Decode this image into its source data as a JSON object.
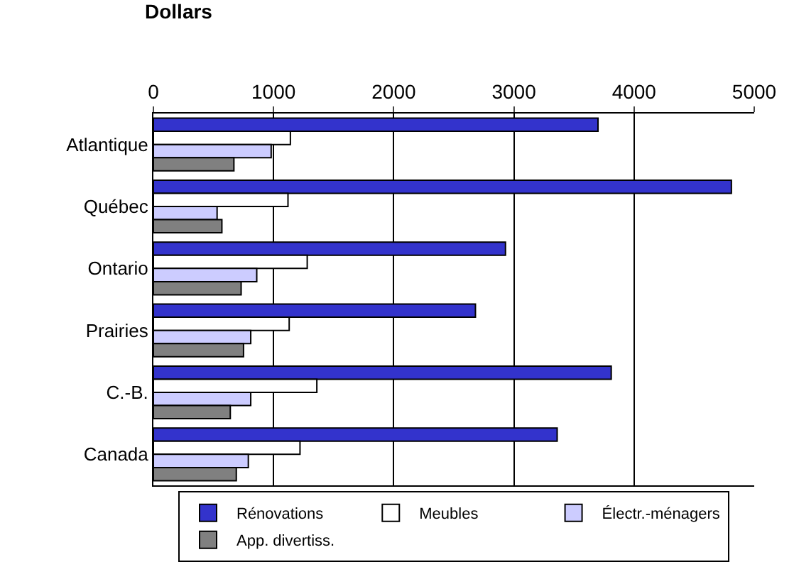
{
  "chart_data": {
    "type": "bar",
    "orientation": "horizontal",
    "xlabel": "Dollars",
    "categories": [
      "Atlantique",
      "Québec",
      "Ontario",
      "Prairies",
      "C.-B.",
      "Canada"
    ],
    "series": [
      {
        "name": "Rénovations",
        "color": "#3333cc",
        "values": [
          3700,
          4810,
          2930,
          2680,
          3810,
          3360
        ]
      },
      {
        "name": "Meubles",
        "color": "#ffffff",
        "values": [
          1140,
          1120,
          1280,
          1130,
          1360,
          1220
        ]
      },
      {
        "name": "Électr.-ménagers",
        "color": "#ccccff",
        "values": [
          980,
          530,
          860,
          810,
          810,
          790
        ]
      },
      {
        "name": "App. divertiss.",
        "color": "#808080",
        "values": [
          670,
          570,
          730,
          750,
          640,
          690
        ]
      }
    ],
    "xlim": [
      0,
      5000
    ],
    "xticks": [
      0,
      1000,
      2000,
      3000,
      4000,
      5000
    ],
    "grid": "x",
    "legend": "bottom"
  }
}
